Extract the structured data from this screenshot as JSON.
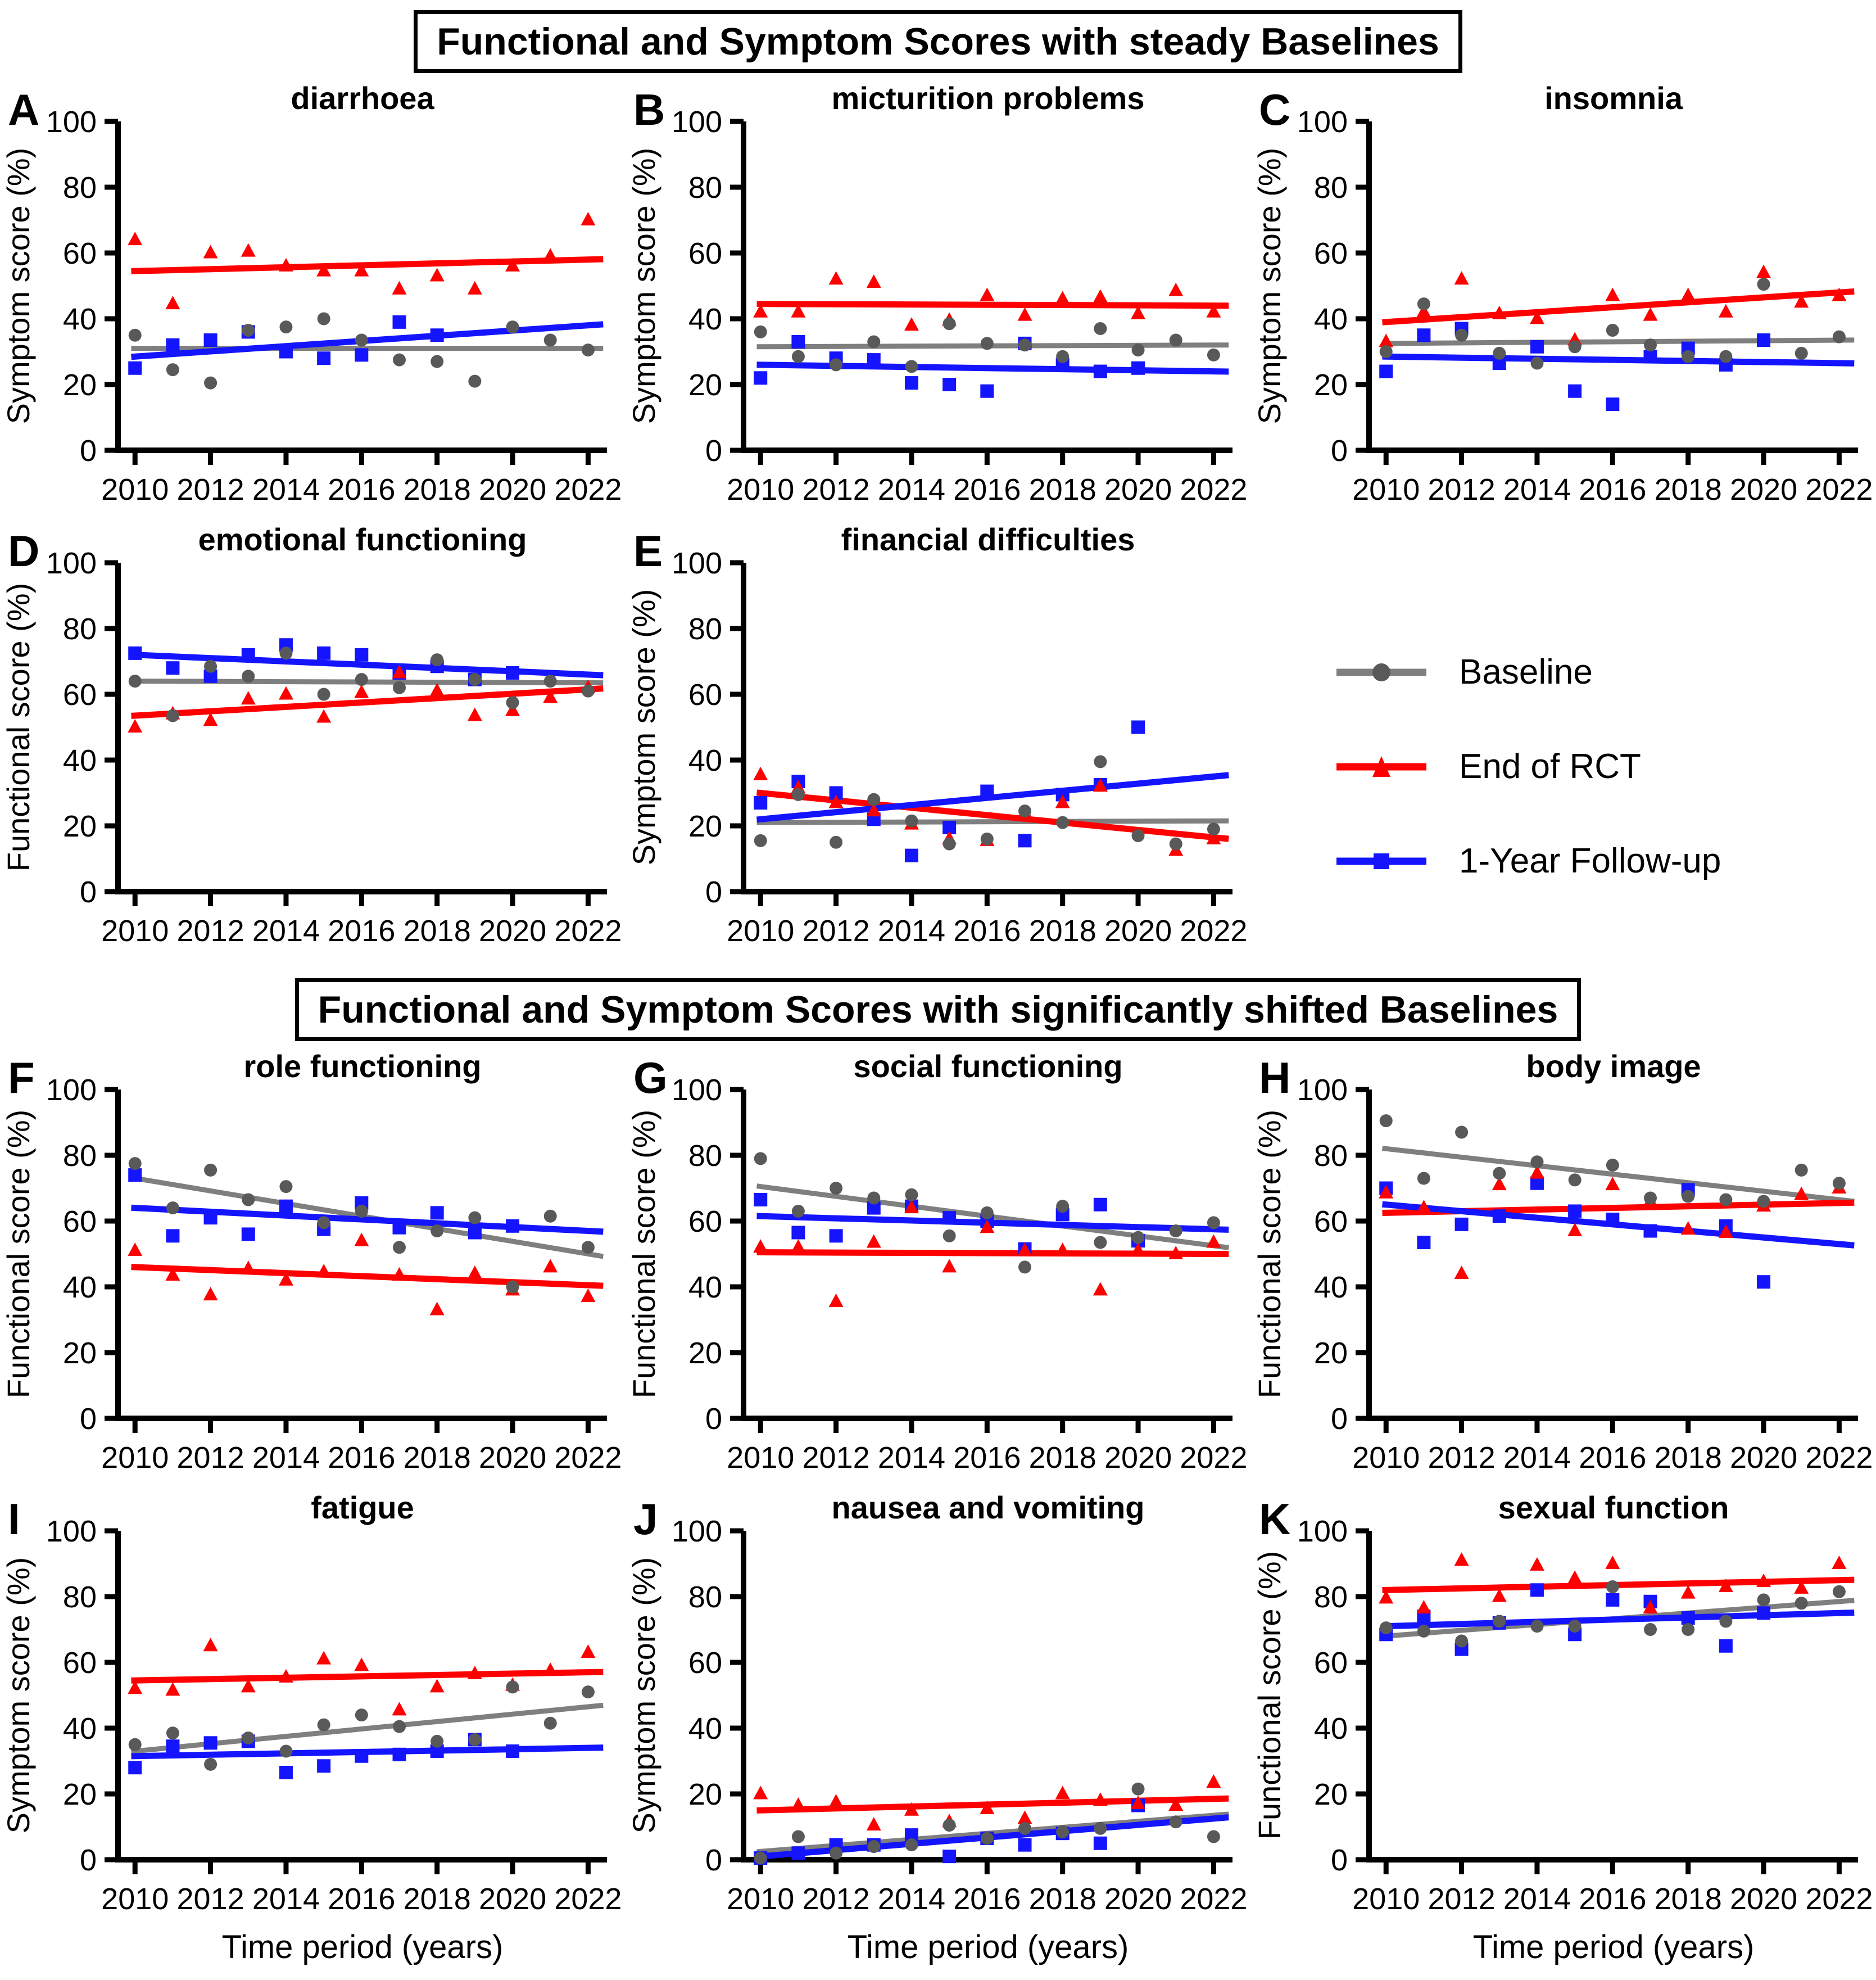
{
  "page": {
    "header_steady": "Functional and Symptom Scores with steady Baselines",
    "header_shifted": "Functional and Symptom Scores with significantly shifted Baselines"
  },
  "legend": {
    "items": [
      {
        "key": "baseline",
        "label": "Baseline",
        "shape": "circle",
        "line_color": "#7F7F7F",
        "marker_color": "#595959"
      },
      {
        "key": "end_rct",
        "label": "End of RCT",
        "shape": "triangle",
        "line_color": "#FF0000",
        "marker_color": "#FF0000"
      },
      {
        "key": "followup",
        "label": "1-Year Follow-up",
        "shape": "square",
        "line_color": "#1414FF",
        "marker_color": "#1414FF"
      }
    ]
  },
  "axes": {
    "years": [
      2010,
      2011,
      2012,
      2013,
      2014,
      2015,
      2016,
      2017,
      2018,
      2019,
      2020,
      2021,
      2022
    ],
    "xticks": [
      2010,
      2012,
      2014,
      2016,
      2018,
      2020,
      2022
    ],
    "yticks": [
      0,
      20,
      40,
      60,
      80,
      100
    ],
    "ylim": [
      0,
      100
    ],
    "xlabel": "Time period (years)"
  },
  "chart_data": [
    {
      "letter": "A",
      "title": "diarrhoea",
      "ylabel": "Symptom score (%)",
      "type": "scatter",
      "section": "steady",
      "show_xlabel": false,
      "series": {
        "baseline": [
          35,
          24.5,
          20.5,
          36.5,
          37.5,
          40,
          33.5,
          27.5,
          27,
          21,
          37.5,
          33.5,
          30.5
        ],
        "end_rct": [
          64,
          44.5,
          60,
          60.5,
          56,
          54.5,
          54.5,
          49,
          53,
          49,
          56,
          59,
          70
        ],
        "followup": [
          25,
          32,
          33.5,
          36,
          30,
          28,
          29,
          39,
          35,
          null,
          null,
          null,
          null
        ]
      },
      "trend": {
        "baseline": [
          31,
          31
        ],
        "end_rct": [
          54.5,
          58
        ],
        "followup": [
          28.5,
          38
        ]
      }
    },
    {
      "letter": "B",
      "title": "micturition problems",
      "ylabel": "Symptom score (%)",
      "type": "scatter",
      "section": "steady",
      "show_xlabel": false,
      "series": {
        "baseline": [
          36,
          28.5,
          26,
          33,
          25.5,
          38.5,
          32.5,
          32,
          28.5,
          37,
          30.5,
          33.5,
          29
        ],
        "end_rct": [
          42,
          42,
          52,
          51,
          38,
          39.5,
          47,
          41,
          46,
          46.5,
          41.5,
          48.5,
          42
        ],
        "followup": [
          22,
          33,
          28,
          27.5,
          20.5,
          20,
          18,
          32.5,
          26,
          24,
          25,
          null,
          null
        ]
      },
      "trend": {
        "baseline": [
          31.5,
          32
        ],
        "end_rct": [
          44.5,
          44
        ],
        "followup": [
          26,
          24
        ]
      }
    },
    {
      "letter": "C",
      "title": "insomnia",
      "ylabel": "Symptom score (%)",
      "type": "scatter",
      "section": "steady",
      "show_xlabel": false,
      "series": {
        "baseline": [
          30,
          44.5,
          35,
          29.5,
          26.5,
          31.5,
          36.5,
          32,
          28.5,
          28.5,
          50.5,
          29.5,
          34.5
        ],
        "end_rct": [
          33,
          42,
          52,
          41.5,
          40,
          33.5,
          47,
          41,
          47,
          42,
          54,
          45,
          47
        ],
        "followup": [
          24,
          35,
          37,
          26.5,
          31.5,
          18,
          14,
          28.5,
          31,
          26,
          33.5,
          null,
          null
        ]
      },
      "trend": {
        "baseline": [
          32.5,
          33.5
        ],
        "end_rct": [
          39,
          48
        ],
        "followup": [
          28.5,
          26.5
        ]
      }
    },
    {
      "letter": "D",
      "title": "emotional functioning",
      "ylabel": "Functional score (%)",
      "type": "scatter",
      "section": "steady",
      "show_xlabel": false,
      "series": {
        "baseline": [
          64,
          53.5,
          68.5,
          65.5,
          72.5,
          60,
          64.5,
          62,
          70.5,
          64.5,
          57.5,
          64,
          61
        ],
        "end_rct": [
          50,
          54,
          52,
          58.5,
          60,
          53,
          60.5,
          66.5,
          61,
          53.5,
          55,
          59,
          62
        ],
        "followup": [
          72.5,
          68,
          65.5,
          72,
          75,
          72.5,
          72,
          66.5,
          68.5,
          64.5,
          66.5,
          null,
          null
        ]
      },
      "trend": {
        "baseline": [
          64,
          63.5
        ],
        "end_rct": [
          53.5,
          61.5
        ],
        "followup": [
          72,
          66
        ]
      }
    },
    {
      "letter": "E",
      "title": "financial difficulties",
      "ylabel": "Symptom score (%)",
      "type": "scatter",
      "section": "steady",
      "show_xlabel": false,
      "series": {
        "baseline": [
          15.5,
          29.5,
          15,
          28,
          21.5,
          14.5,
          16,
          24.5,
          21,
          39.5,
          17,
          14.5,
          19
        ],
        "end_rct": [
          35.5,
          31.5,
          27,
          24.5,
          20.5,
          16,
          15.5,
          24,
          27,
          32,
          null,
          12.5,
          16
        ],
        "followup": [
          27,
          33.5,
          30,
          22,
          11,
          19.5,
          30.5,
          15.5,
          29.5,
          32.5,
          50,
          null,
          null
        ]
      },
      "trend": {
        "baseline": [
          21,
          21.5
        ],
        "end_rct": [
          30,
          16.5
        ],
        "followup": [
          22,
          35
        ]
      }
    },
    {
      "letter": "F",
      "title": "role functioning",
      "ylabel": "Functional score (%)",
      "type": "scatter",
      "section": "shifted",
      "show_xlabel": false,
      "series": {
        "baseline": [
          77.5,
          64,
          75.5,
          66.5,
          70.5,
          59.5,
          63,
          52,
          57,
          61,
          40,
          61.5,
          52
        ],
        "end_rct": [
          51,
          43.5,
          37.5,
          45.5,
          42,
          44.5,
          54,
          43.5,
          33,
          44,
          39,
          46,
          37
        ],
        "followup": [
          74,
          55.5,
          61,
          56,
          64.5,
          57.5,
          65.5,
          58,
          62.5,
          56.5,
          58.5,
          null,
          null
        ]
      },
      "trend": {
        "baseline": [
          73,
          50
        ],
        "end_rct": [
          46,
          40.5
        ],
        "followup": [
          64,
          57
        ]
      }
    },
    {
      "letter": "G",
      "title": "social functioning",
      "ylabel": "Functional score (%)",
      "type": "scatter",
      "section": "shifted",
      "show_xlabel": false,
      "series": {
        "baseline": [
          79,
          63,
          70,
          67,
          68,
          55.5,
          62.5,
          46,
          64.5,
          53.5,
          55,
          57,
          59.5
        ],
        "end_rct": [
          52,
          52,
          35.5,
          53.5,
          64,
          46,
          58,
          51,
          51,
          39,
          51,
          50,
          53.5
        ],
        "followup": [
          66.5,
          56.5,
          55.5,
          64,
          64.5,
          61,
          60,
          51.5,
          62,
          65,
          54,
          null,
          null
        ]
      },
      "trend": {
        "baseline": [
          70.5,
          52.5
        ],
        "end_rct": [
          50.5,
          50
        ],
        "followup": [
          61.5,
          57.5
        ]
      }
    },
    {
      "letter": "H",
      "title": "body image",
      "ylabel": "Functional score (%)",
      "type": "scatter",
      "section": "shifted",
      "show_xlabel": false,
      "series": {
        "baseline": [
          90.5,
          73,
          87,
          74.5,
          78,
          72.5,
          77,
          67,
          67.5,
          66.5,
          66,
          75.5,
          71.5
        ],
        "end_rct": [
          68.5,
          64,
          44,
          71,
          74.5,
          57,
          71,
          66,
          57.5,
          56.5,
          64.5,
          68,
          70
        ],
        "followup": [
          70,
          53.5,
          59,
          61.5,
          71.5,
          63,
          60.5,
          57,
          69.5,
          58.5,
          41.5,
          null,
          null
        ]
      },
      "trend": {
        "baseline": [
          82,
          66.5
        ],
        "end_rct": [
          62.5,
          65.5
        ],
        "followup": [
          65,
          53
        ]
      }
    },
    {
      "letter": "I",
      "title": "fatigue",
      "ylabel": "Symptom score (%)",
      "type": "scatter",
      "section": "shifted",
      "show_xlabel": true,
      "series": {
        "baseline": [
          35,
          38.5,
          29,
          37,
          33,
          41,
          44,
          40.5,
          36,
          36.5,
          52.5,
          41.5,
          51
        ],
        "end_rct": [
          52,
          51.5,
          65,
          52.5,
          55.5,
          61,
          59,
          45.5,
          52.5,
          56.5,
          53,
          57.5,
          63
        ],
        "followup": [
          28,
          34.5,
          35.5,
          36,
          26.5,
          28.5,
          31.5,
          32,
          33,
          36.5,
          33,
          null,
          null
        ]
      },
      "trend": {
        "baseline": [
          33,
          46.5
        ],
        "end_rct": [
          54.5,
          57
        ],
        "followup": [
          31.5,
          34
        ]
      }
    },
    {
      "letter": "J",
      "title": "nausea and vomiting",
      "ylabel": "Symptom score (%)",
      "type": "scatter",
      "section": "shifted",
      "show_xlabel": true,
      "series": {
        "baseline": [
          0.5,
          7,
          2,
          4,
          4.5,
          10.5,
          6.5,
          9.5,
          8.5,
          9.5,
          21.5,
          11.5,
          7
        ],
        "end_rct": [
          20,
          16.5,
          17.5,
          10.5,
          15,
          11.5,
          15.5,
          12.5,
          20,
          18,
          17,
          16.5,
          23.5
        ],
        "followup": [
          0.5,
          2,
          4.5,
          4.5,
          7.5,
          1,
          6.5,
          4.5,
          8,
          5,
          16.5,
          null,
          null
        ]
      },
      "trend": {
        "baseline": [
          2.5,
          13.5
        ],
        "end_rct": [
          15,
          18.5
        ],
        "followup": [
          1,
          12.5
        ]
      }
    },
    {
      "letter": "K",
      "title": "sexual function",
      "ylabel": "Functional score (%)",
      "type": "scatter",
      "section": "shifted",
      "show_xlabel": true,
      "series": {
        "baseline": [
          70.5,
          69.5,
          66.5,
          72.5,
          71,
          71,
          83,
          70,
          70,
          72.5,
          79,
          78,
          81.5
        ],
        "end_rct": [
          79.5,
          76.5,
          91,
          80,
          89.5,
          85.5,
          90,
          76.5,
          81,
          83,
          84.5,
          82.5,
          90
        ],
        "followup": [
          68.5,
          74,
          64,
          72,
          82,
          68.5,
          79,
          78.5,
          73.5,
          65,
          75,
          null,
          null
        ]
      },
      "trend": {
        "baseline": [
          68,
          78.5
        ],
        "end_rct": [
          82,
          85
        ],
        "followup": [
          71,
          75
        ]
      }
    }
  ]
}
